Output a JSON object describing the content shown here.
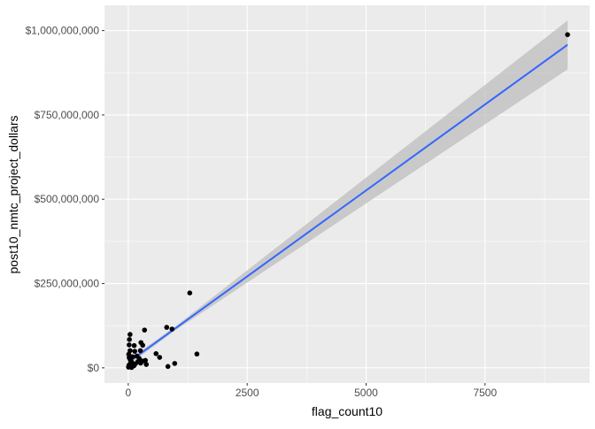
{
  "chart_data": {
    "type": "scatter",
    "xlabel": "flag_count10",
    "ylabel": "post10_nmtc_project_dollars",
    "xlim": [
      -500,
      9700
    ],
    "ylim": [
      -45000000,
      1075000000
    ],
    "x_ticks": [
      0,
      2500,
      5000,
      7500
    ],
    "x_tick_labels": [
      "0",
      "2500",
      "5000",
      "7500"
    ],
    "y_ticks": [
      0,
      250000000,
      500000000,
      750000000,
      1000000000
    ],
    "y_tick_labels": [
      "$0",
      "$250,000,000",
      "$500,000,000",
      "$750,000,000",
      "$1,000,000,000"
    ],
    "grid": true,
    "points": [
      [
        1293,
        222000000
      ],
      [
        342,
        112000000
      ],
      [
        808,
        120000000
      ],
      [
        920,
        115000000
      ],
      [
        37,
        99000000
      ],
      [
        24,
        84000000
      ],
      [
        19,
        68000000
      ],
      [
        125,
        66000000
      ],
      [
        267,
        75000000
      ],
      [
        304,
        67000000
      ],
      [
        137,
        49000000
      ],
      [
        255,
        51000000
      ],
      [
        37,
        51000000
      ],
      [
        584,
        42000000
      ],
      [
        659,
        31000000
      ],
      [
        1443,
        41000000
      ],
      [
        976,
        13000000
      ],
      [
        834,
        4000000
      ],
      [
        360,
        22000000
      ],
      [
        379,
        10000000
      ],
      [
        10,
        40000000
      ],
      [
        20,
        30000000
      ],
      [
        40,
        25000000
      ],
      [
        60,
        20000000
      ],
      [
        80,
        15000000
      ],
      [
        100,
        10000000
      ],
      [
        15,
        8000000
      ],
      [
        30,
        5000000
      ],
      [
        50,
        3000000
      ],
      [
        5,
        2000000
      ],
      [
        70,
        1000000
      ],
      [
        120,
        6000000
      ],
      [
        150,
        12000000
      ],
      [
        200,
        18000000
      ],
      [
        230,
        28000000
      ],
      [
        180,
        35000000
      ],
      [
        260,
        14000000
      ],
      [
        300,
        20000000
      ],
      [
        90,
        33000000
      ],
      [
        45,
        12000000
      ],
      [
        9235,
        988000000
      ]
    ],
    "trend": {
      "color": "#3366FF",
      "band_color": "#BEBEBE",
      "line": [
        [
          0,
          16000000
        ],
        [
          9235,
          958000000
        ]
      ],
      "band_lower": [
        [
          0,
          8000000
        ],
        [
          1000,
          112000000
        ],
        [
          9235,
          885000000
        ]
      ],
      "band_upper": [
        [
          0,
          24000000
        ],
        [
          1000,
          124000000
        ],
        [
          9235,
          1030000000
        ]
      ]
    }
  }
}
